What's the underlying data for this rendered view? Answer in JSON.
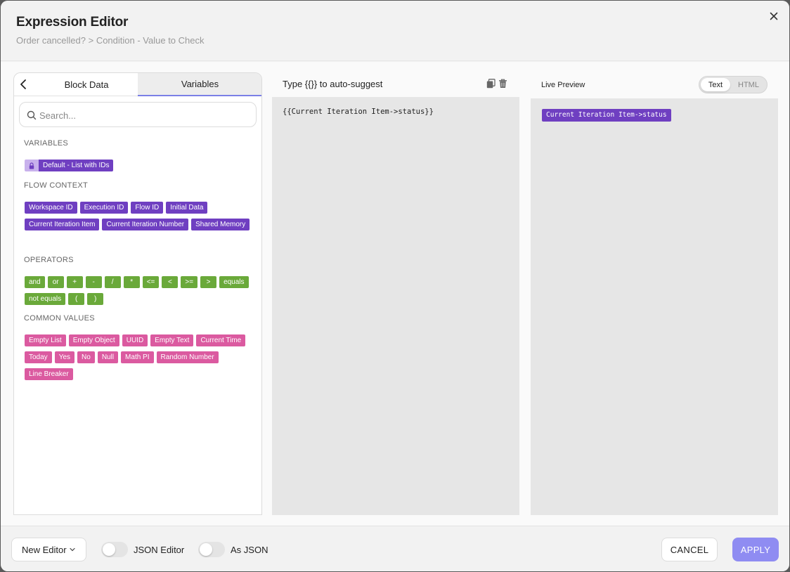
{
  "header": {
    "title": "Expression Editor",
    "breadcrumb": "Order cancelled? > Condition - Value to Check"
  },
  "left_panel": {
    "tabs": [
      {
        "label": "Block Data",
        "active": false
      },
      {
        "label": "Variables",
        "active": true
      }
    ],
    "search": {
      "placeholder": "Search...",
      "value": ""
    },
    "sections": {
      "variables": {
        "label": "VARIABLES",
        "items": [
          {
            "label": "Default - List with IDs",
            "icon": "lock-icon"
          }
        ]
      },
      "flow_context": {
        "label": "FLOW CONTEXT",
        "items": [
          "Workspace ID",
          "Execution ID",
          "Flow ID",
          "Initial Data",
          "Current Iteration Item",
          "Current Iteration Number",
          "Shared Memory"
        ]
      },
      "operators": {
        "label": "OPERATORS",
        "items": [
          "and",
          "or",
          "+",
          "-",
          "/",
          "*",
          "<=",
          "<",
          ">=",
          ">",
          "equals",
          "not equals",
          "(",
          ")"
        ]
      },
      "common_values": {
        "label": "COMMON VALUES",
        "items": [
          "Empty List",
          "Empty Object",
          "UUID",
          "Empty Text",
          "Current Time",
          "Today",
          "Yes",
          "No",
          "Null",
          "Math PI",
          "Random Number",
          "Line Breaker"
        ]
      }
    }
  },
  "editor": {
    "label": "Type {{}} to auto-suggest",
    "content": "{{Current Iteration Item->status}}"
  },
  "preview": {
    "label": "Live Preview",
    "modes": [
      {
        "label": "Text",
        "active": true
      },
      {
        "label": "HTML",
        "active": false
      }
    ],
    "chip": "Current Iteration Item->status"
  },
  "footer": {
    "new_editor": "New Editor",
    "json_editor": {
      "label": "JSON Editor",
      "on": false
    },
    "as_json": {
      "label": "As JSON",
      "on": false
    },
    "cancel": "CANCEL",
    "apply": "APPLY"
  },
  "colors": {
    "variable_chip": "#6f3fc1",
    "operator_chip": "#6aa93a",
    "common_value_chip": "#db5aa0",
    "apply_button": "#8f8cf2",
    "active_tab_underline": "#7b7fe6"
  }
}
